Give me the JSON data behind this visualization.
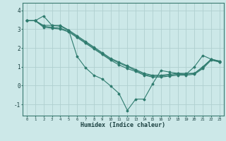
{
  "title": "",
  "xlabel": "Humidex (Indice chaleur)",
  "background_color": "#cce8e8",
  "grid_color": "#b0d0d0",
  "line_color": "#2e7b6e",
  "xlim": [
    -0.5,
    23.5
  ],
  "ylim": [
    -1.6,
    4.4
  ],
  "xticks": [
    0,
    1,
    2,
    3,
    4,
    5,
    6,
    7,
    8,
    9,
    10,
    11,
    12,
    13,
    14,
    15,
    16,
    17,
    18,
    19,
    20,
    21,
    22,
    23
  ],
  "yticks": [
    -1,
    0,
    1,
    2,
    3,
    4
  ],
  "series": [
    [
      3.45,
      3.45,
      3.7,
      3.2,
      3.2,
      2.95,
      1.55,
      0.95,
      0.55,
      0.35,
      -0.02,
      -0.42,
      -1.32,
      -0.72,
      -0.72,
      0.08,
      0.8,
      0.72,
      0.65,
      0.6,
      1.0,
      1.6,
      1.4,
      1.3
    ],
    [
      3.45,
      3.45,
      3.2,
      3.2,
      3.15,
      2.95,
      2.65,
      2.35,
      2.05,
      1.75,
      1.45,
      1.25,
      1.05,
      0.85,
      0.65,
      0.55,
      0.55,
      0.6,
      0.65,
      0.65,
      0.65,
      1.0,
      1.4,
      1.3
    ],
    [
      3.45,
      3.45,
      3.15,
      3.1,
      3.05,
      2.9,
      2.6,
      2.3,
      2.0,
      1.7,
      1.4,
      1.2,
      1.0,
      0.8,
      0.6,
      0.5,
      0.5,
      0.55,
      0.6,
      0.6,
      0.65,
      0.95,
      1.4,
      1.25
    ],
    [
      3.45,
      3.45,
      3.1,
      3.05,
      3.0,
      2.85,
      2.55,
      2.25,
      1.95,
      1.65,
      1.35,
      1.1,
      0.9,
      0.75,
      0.55,
      0.45,
      0.45,
      0.5,
      0.55,
      0.55,
      0.6,
      0.9,
      1.35,
      1.25
    ]
  ]
}
